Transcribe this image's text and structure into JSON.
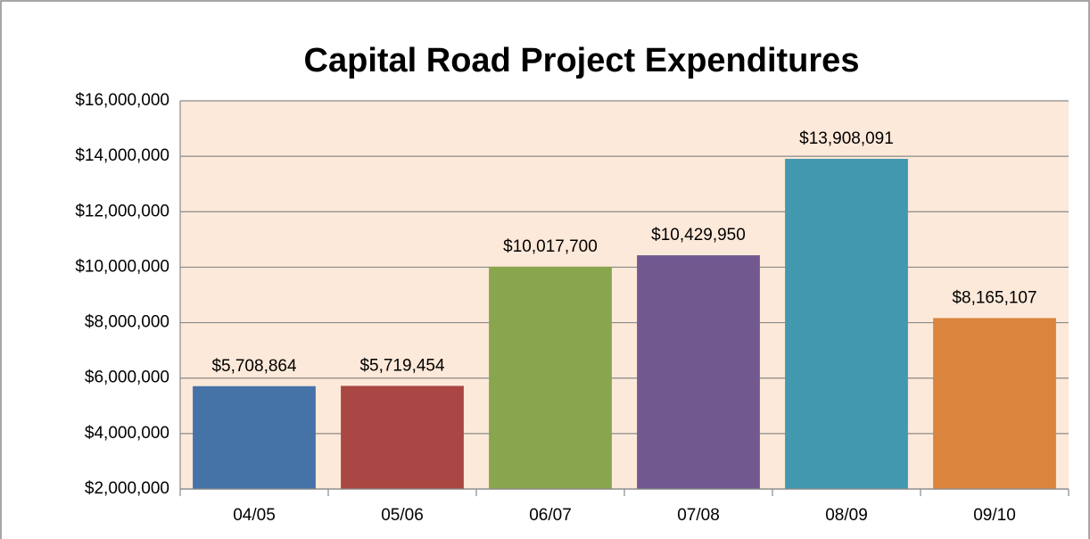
{
  "chart_data": {
    "type": "bar",
    "title": "Capital Road Project Expenditures",
    "categories": [
      "04/05",
      "05/06",
      "06/07",
      "07/08",
      "08/09",
      "09/10"
    ],
    "values": [
      5708864,
      5719454,
      10017700,
      10429950,
      13908091,
      8165107
    ],
    "value_labels": [
      "$5,708,864",
      "$5,719,454",
      "$10,017,700",
      "$10,429,950",
      "$13,908,091",
      "$8,165,107"
    ],
    "colors": [
      "#4572a7",
      "#aa4643",
      "#89a54e",
      "#71588f",
      "#4198af",
      "#db843d"
    ],
    "ylim": [
      2000000,
      16000000
    ],
    "yticks": [
      {
        "value": 2000000,
        "label": "$2,000,000"
      },
      {
        "value": 4000000,
        "label": "$4,000,000"
      },
      {
        "value": 6000000,
        "label": "$6,000,000"
      },
      {
        "value": 8000000,
        "label": "$8,000,000"
      },
      {
        "value": 10000000,
        "label": "$10,000,000"
      },
      {
        "value": 12000000,
        "label": "$12,000,000"
      },
      {
        "value": 14000000,
        "label": "$14,000,000"
      },
      {
        "value": 16000000,
        "label": "$16,000,000"
      }
    ],
    "grid": true
  }
}
